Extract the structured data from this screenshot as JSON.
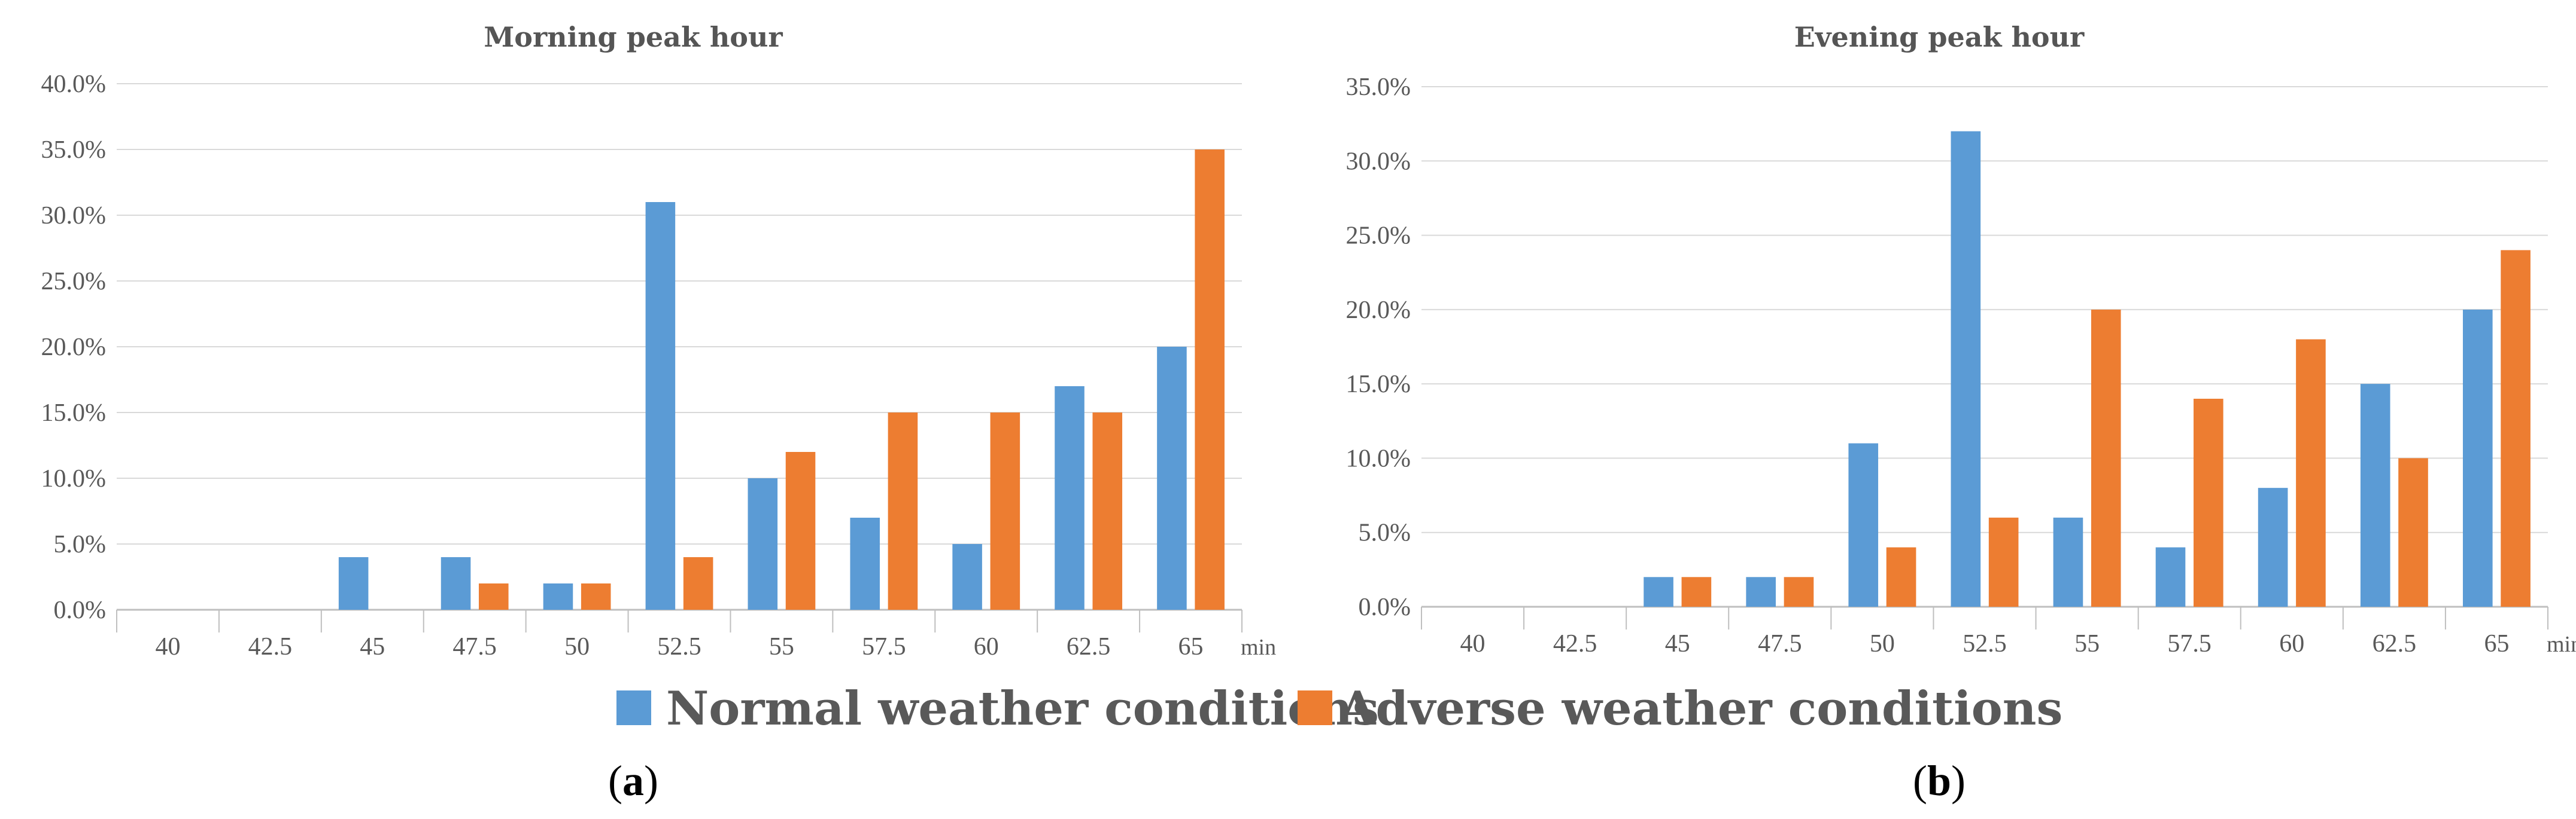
{
  "chart_data": [
    {
      "type": "bar",
      "title": "Morning peak hour",
      "panel_label": [
        "(",
        "a",
        ")"
      ],
      "categories": [
        "40",
        "42.5",
        "45",
        "47.5",
        "50",
        "52.5",
        "55",
        "57.5",
        "60",
        "62.5",
        "65"
      ],
      "x_unit": "min",
      "y_ticks": [
        "0.0%",
        "5.0%",
        "10.0%",
        "15.0%",
        "20.0%",
        "25.0%",
        "30.0%",
        "35.0%",
        "40.0%"
      ],
      "ylim": [
        0,
        40
      ],
      "series": [
        {
          "name": "Normal weather conditions",
          "color": "#5B9BD5",
          "values": [
            0,
            0,
            4,
            4,
            2,
            31,
            10,
            7,
            5,
            17,
            20
          ]
        },
        {
          "name": "Adverse weather conditions",
          "color": "#ED7D31",
          "values": [
            0,
            0,
            0,
            2,
            2,
            4,
            12,
            15,
            15,
            15,
            35
          ]
        }
      ]
    },
    {
      "type": "bar",
      "title": "Evening peak hour",
      "panel_label": [
        "(",
        "b",
        ")"
      ],
      "categories": [
        "40",
        "42.5",
        "45",
        "47.5",
        "50",
        "52.5",
        "55",
        "57.5",
        "60",
        "62.5",
        "65"
      ],
      "x_unit": "min",
      "y_ticks": [
        "0.0%",
        "5.0%",
        "10.0%",
        "15.0%",
        "20.0%",
        "25.0%",
        "30.0%",
        "35.0%"
      ],
      "ylim": [
        0,
        35
      ],
      "series": [
        {
          "name": "Normal weather conditions",
          "color": "#5B9BD5",
          "values": [
            0,
            0,
            2,
            2,
            11,
            32,
            6,
            4,
            8,
            15,
            20
          ]
        },
        {
          "name": "Adverse weather conditions",
          "color": "#ED7D31",
          "values": [
            0,
            0,
            2,
            2,
            4,
            6,
            20,
            14,
            18,
            10,
            24
          ]
        }
      ]
    }
  ],
  "legend": [
    {
      "label": "Normal weather conditions",
      "color": "#5B9BD5"
    },
    {
      "label": "Adverse weather conditions",
      "color": "#ED7D31"
    }
  ]
}
